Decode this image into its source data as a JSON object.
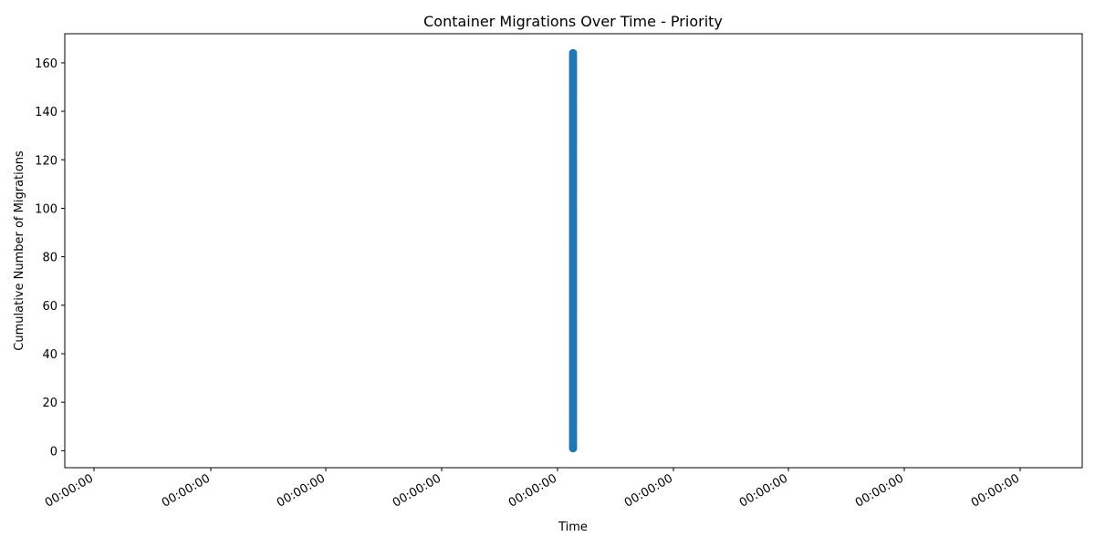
{
  "chart_data": {
    "type": "line",
    "title": "Container Migrations Over Time - Priority",
    "xlabel": "Time",
    "ylabel": "Cumulative Number of Migrations",
    "x_tick_labels": [
      "00:00:00",
      "00:00:00",
      "00:00:00",
      "00:00:00",
      "00:00:00",
      "00:00:00",
      "00:00:00",
      "00:00:00",
      "00:00:00"
    ],
    "y_ticks": [
      0,
      20,
      40,
      60,
      80,
      100,
      120,
      140,
      160
    ],
    "ylim": [
      -7,
      172
    ],
    "grid": false,
    "series": [
      {
        "color": "#1f77b4",
        "marker": "circle",
        "x_position": "single timestamp (all points share the same time)",
        "values_from": 1,
        "values_to": 164,
        "values_step": 1
      }
    ]
  }
}
